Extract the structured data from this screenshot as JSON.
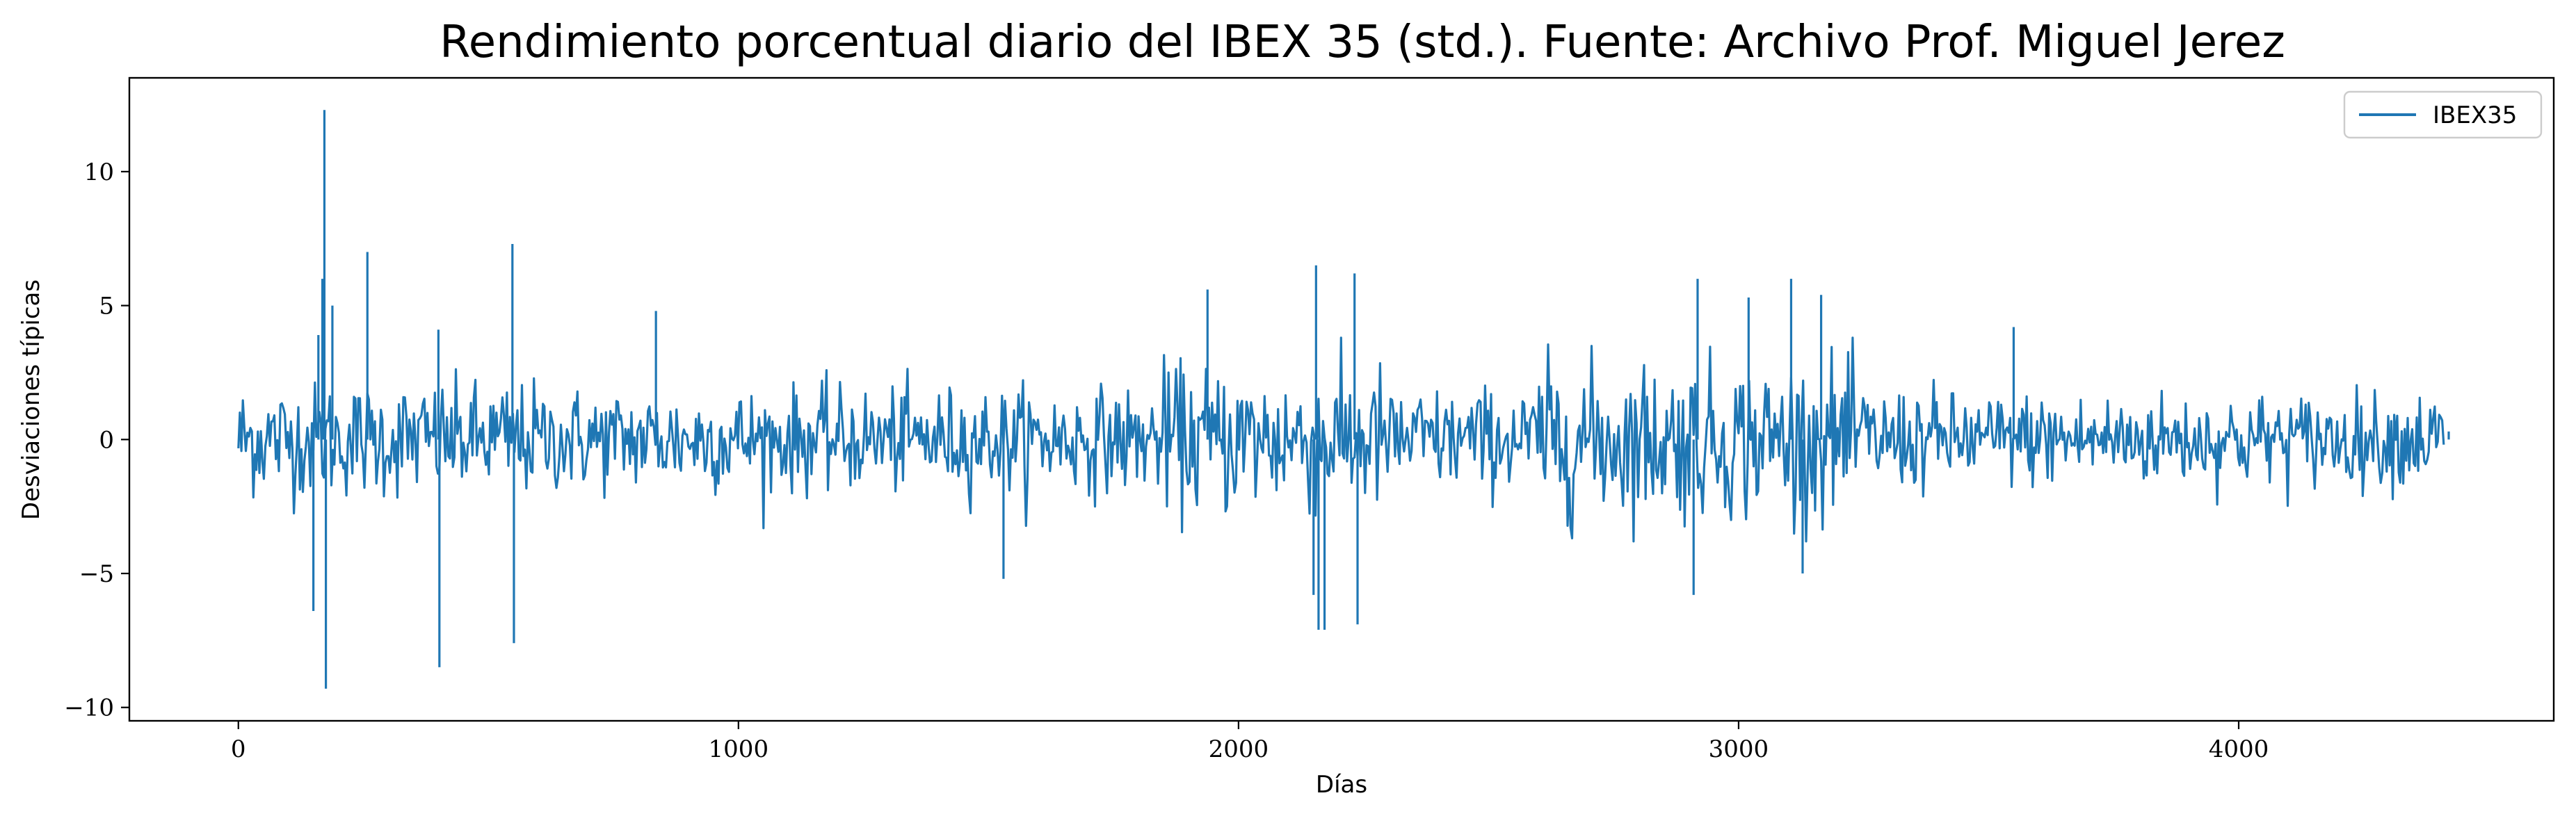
{
  "chart_data": {
    "type": "line",
    "title": "Rendimiento porcentual diario del IBEX 35 (std.). Fuente: Archivo Prof. Miguel Jerez",
    "xlabel": "Días",
    "ylabel": "Desviaciones típicas",
    "xlim": [
      -218,
      4630
    ],
    "ylim": [
      -10.5,
      13.5
    ],
    "xticks": [
      0,
      1000,
      2000,
      3000,
      4000
    ],
    "xtick_labels": [
      "0",
      "1000",
      "2000",
      "3000",
      "4000"
    ],
    "yticks": [
      -10,
      -5,
      0,
      5,
      10
    ],
    "ytick_labels": [
      "−10",
      "−5",
      "0",
      "5",
      "10"
    ],
    "grid": false,
    "legend_position": "top-right",
    "series": [
      {
        "name": "IBEX35",
        "color": "#1f77b4",
        "n_points": 4412,
        "notable_points": [
          {
            "x": 150,
            "y": -6.4
          },
          {
            "x": 160,
            "y": 3.9
          },
          {
            "x": 168,
            "y": 6.0
          },
          {
            "x": 172,
            "y": 12.3
          },
          {
            "x": 175,
            "y": -9.3
          },
          {
            "x": 188,
            "y": 5.0
          },
          {
            "x": 258,
            "y": 7.0
          },
          {
            "x": 400,
            "y": 4.1
          },
          {
            "x": 402,
            "y": -8.5
          },
          {
            "x": 548,
            "y": 7.3
          },
          {
            "x": 551,
            "y": -7.6
          },
          {
            "x": 835,
            "y": 4.8
          },
          {
            "x": 1530,
            "y": -5.2
          },
          {
            "x": 1938,
            "y": 5.6
          },
          {
            "x": 2150,
            "y": -5.8
          },
          {
            "x": 2155,
            "y": 6.5
          },
          {
            "x": 2160,
            "y": -7.1
          },
          {
            "x": 2172,
            "y": -7.1
          },
          {
            "x": 2232,
            "y": 6.2
          },
          {
            "x": 2238,
            "y": -6.9
          },
          {
            "x": 2910,
            "y": -5.8
          },
          {
            "x": 2918,
            "y": 6.0
          },
          {
            "x": 3020,
            "y": 5.3
          },
          {
            "x": 3105,
            "y": 6.0
          },
          {
            "x": 3128,
            "y": -5.0
          },
          {
            "x": 3165,
            "y": 5.4
          },
          {
            "x": 3550,
            "y": 4.2
          },
          {
            "x": 4420,
            "y": 0.3
          }
        ]
      }
    ]
  }
}
